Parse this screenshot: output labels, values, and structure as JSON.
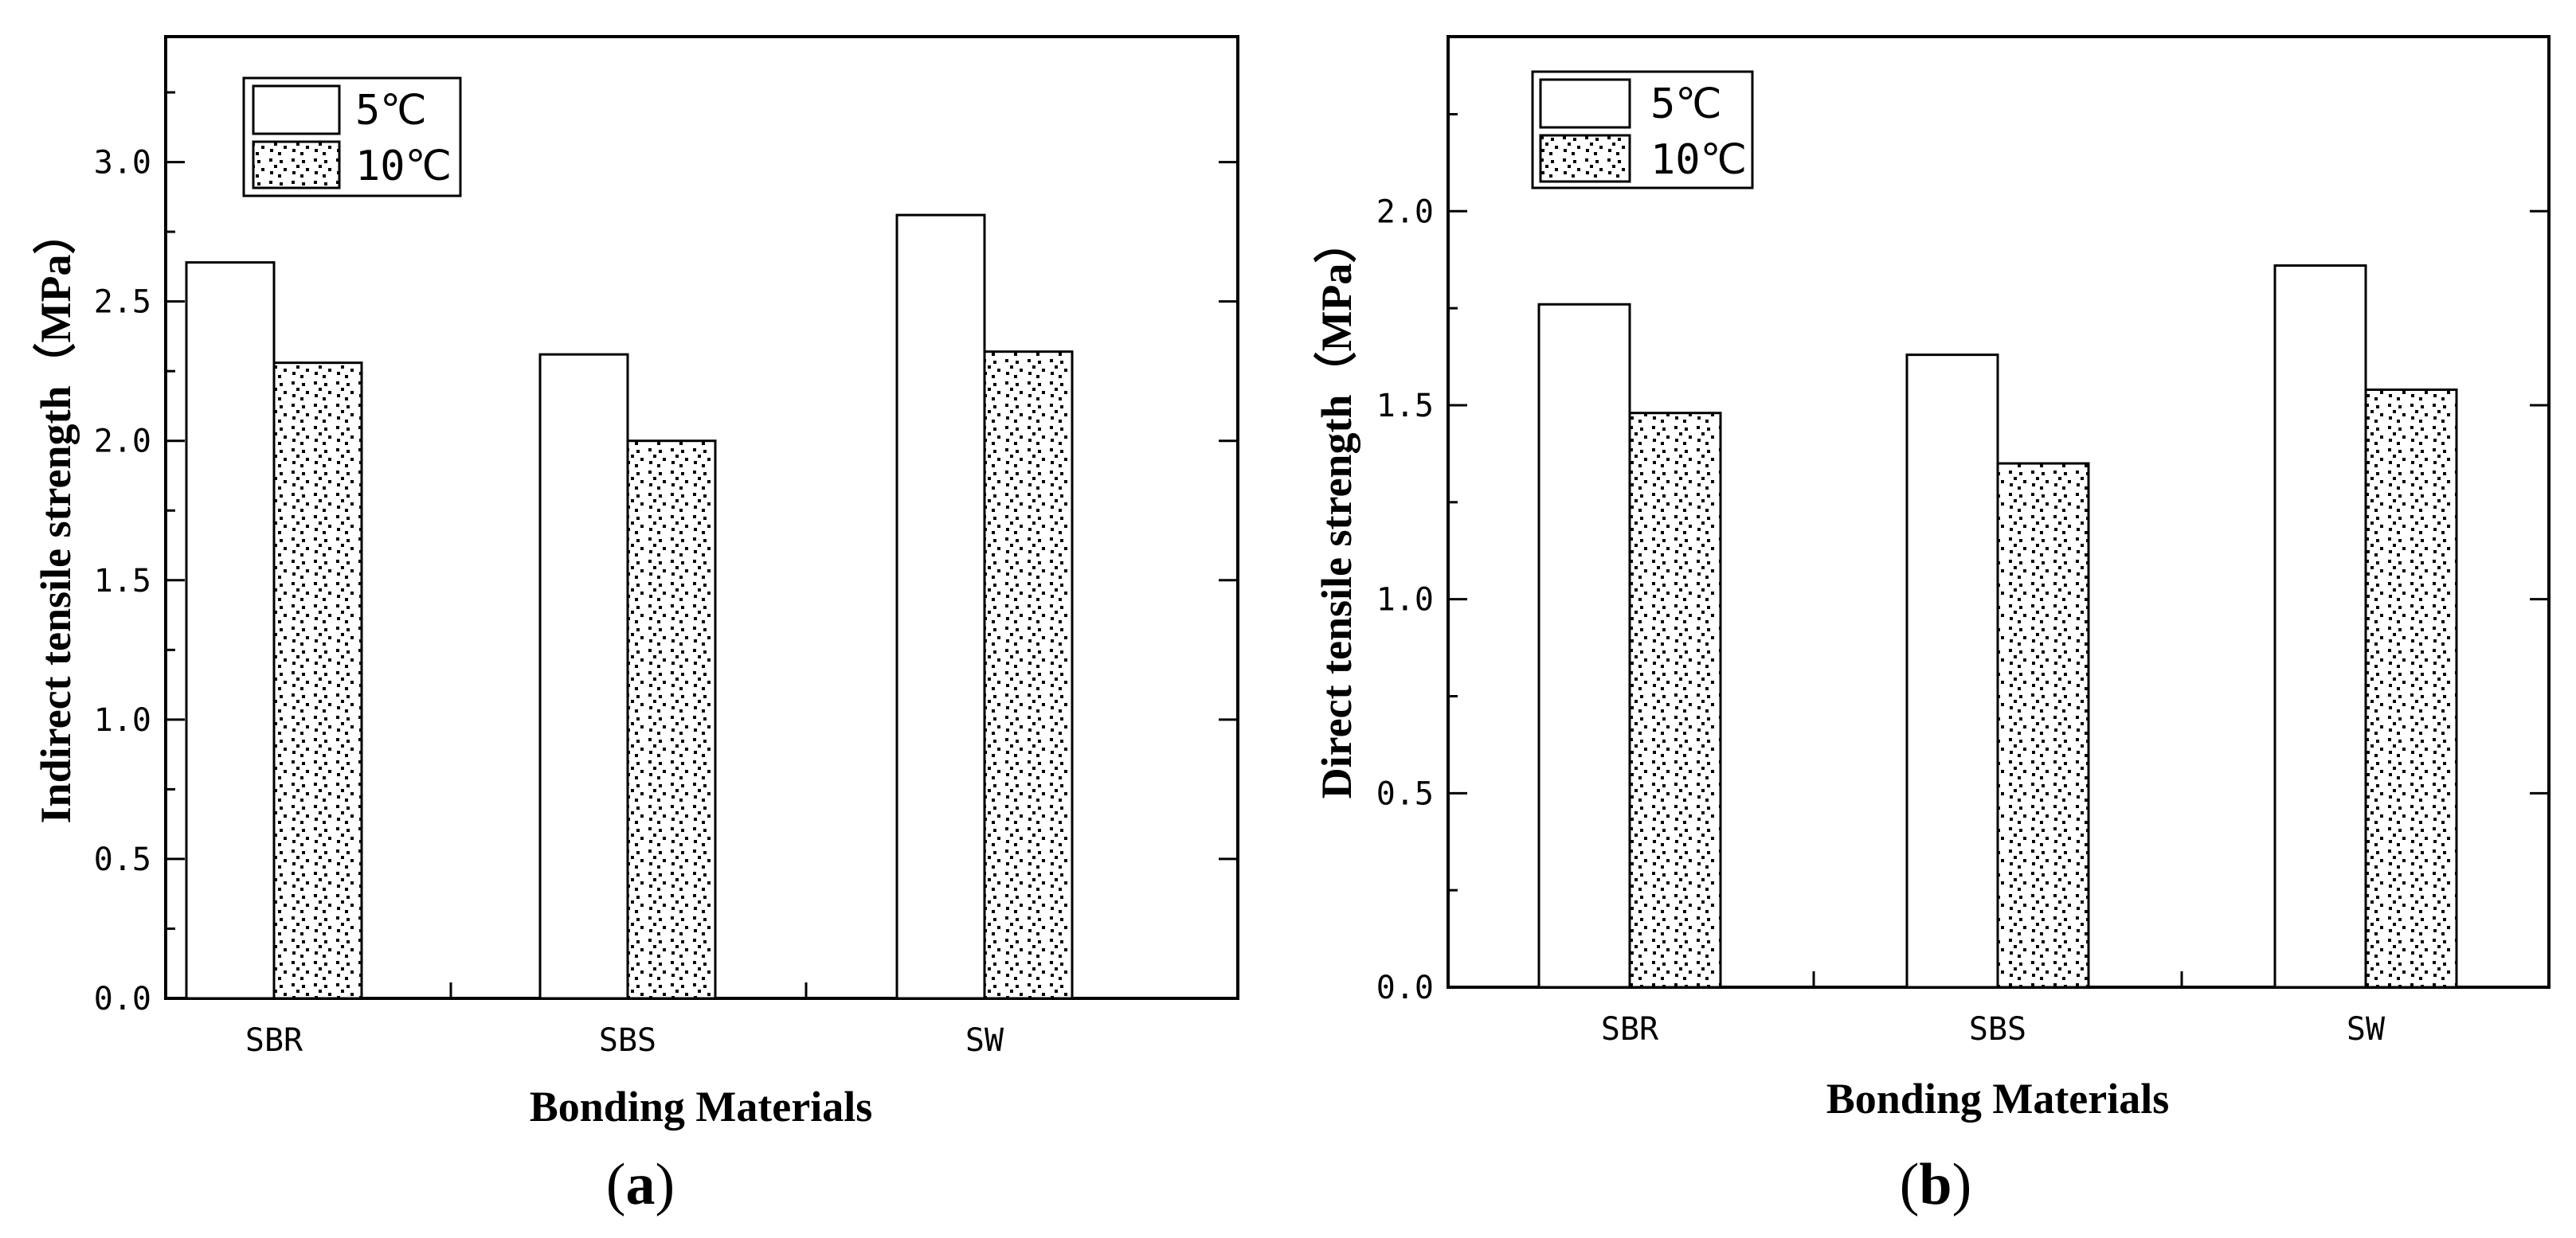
{
  "chart_data": [
    {
      "type": "bar",
      "panel_label": "a",
      "title": "",
      "xlabel": "Bonding Materials",
      "ylabel": "Indirect tensile strength（MPa）",
      "categories": [
        "SBR",
        "SBS",
        "SW"
      ],
      "series": [
        {
          "name": "5℃",
          "values": [
            2.64,
            2.31,
            2.81
          ],
          "fill": "white"
        },
        {
          "name": "10℃",
          "values": [
            2.28,
            2.0,
            2.32
          ],
          "fill": "dot-pattern"
        }
      ],
      "ylim": [
        0.0,
        3.45
      ],
      "yticks": [
        "0.0",
        "0.5",
        "1.0",
        "1.5",
        "2.0",
        "2.5",
        "3.0"
      ],
      "ytick_values": [
        0.0,
        0.5,
        1.0,
        1.5,
        2.0,
        2.5,
        3.0
      ],
      "legend_position": "top-left",
      "grid": false
    },
    {
      "type": "bar",
      "panel_label": "b",
      "title": "",
      "xlabel": "Bonding Materials",
      "ylabel": "Direct tensile strength（MPa）",
      "categories": [
        "SBR",
        "SBS",
        "SW"
      ],
      "series": [
        {
          "name": "5℃",
          "values": [
            1.76,
            1.63,
            1.86
          ],
          "fill": "white"
        },
        {
          "name": "10℃",
          "values": [
            1.48,
            1.35,
            1.54
          ],
          "fill": "dot-pattern"
        }
      ],
      "ylim": [
        0.0,
        2.45
      ],
      "yticks": [
        "0.0",
        "0.5",
        "1.0",
        "1.5",
        "2.0"
      ],
      "ytick_values": [
        0.0,
        0.5,
        1.0,
        1.5,
        2.0
      ],
      "legend_position": "top-left",
      "grid": false
    }
  ],
  "colors": {
    "bar_stroke": "#000000",
    "bar_fill": "#ffffff",
    "pattern_dot": "#000000"
  }
}
